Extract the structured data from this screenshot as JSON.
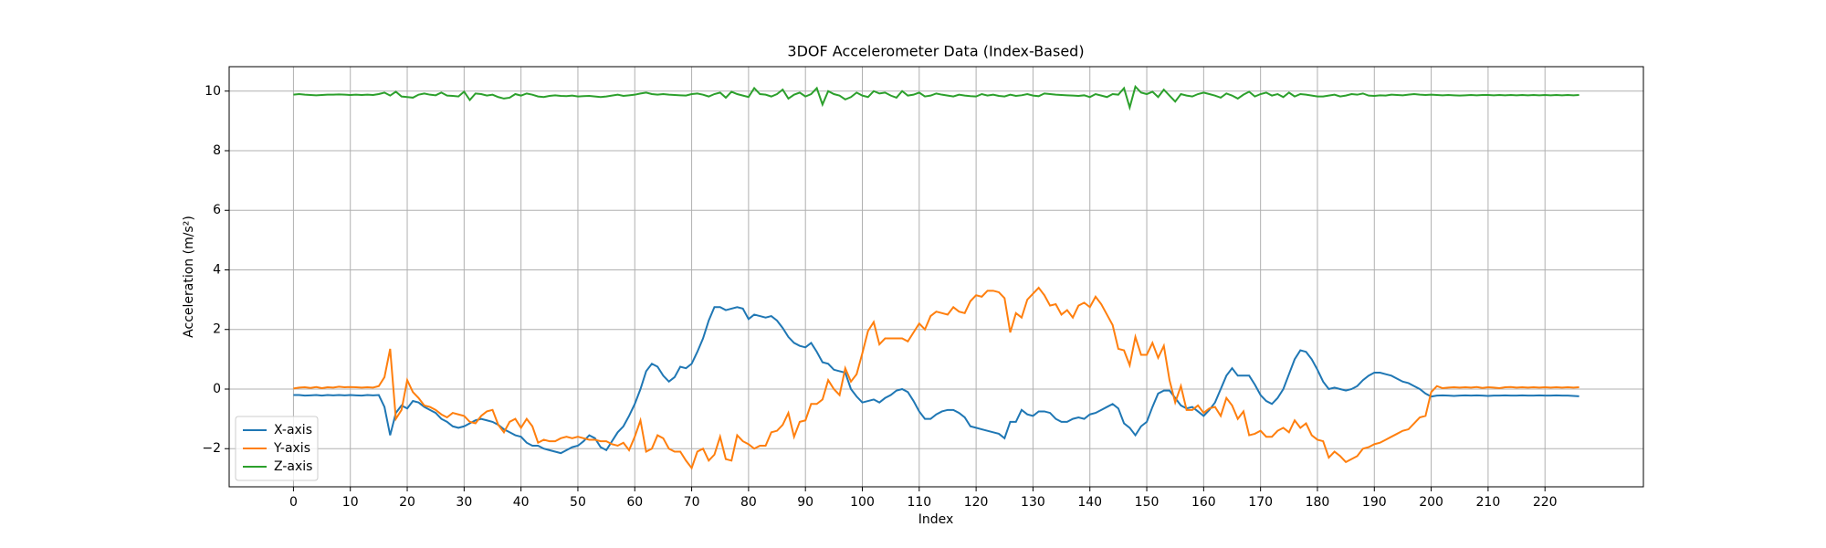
{
  "chart_data": {
    "type": "line",
    "title": "3DOF Accelerometer Data (Index-Based)",
    "xlabel": "Index",
    "ylabel": "Acceleration (m/s²)",
    "x": [
      0,
      1,
      2,
      3,
      4,
      5,
      6,
      7,
      8,
      9,
      10,
      11,
      12,
      13,
      14,
      15,
      16,
      17,
      18,
      19,
      20,
      21,
      22,
      23,
      24,
      25,
      26,
      27,
      28,
      29,
      30,
      31,
      32,
      33,
      34,
      35,
      36,
      37,
      38,
      39,
      40,
      41,
      42,
      43,
      44,
      45,
      46,
      47,
      48,
      49,
      50,
      51,
      52,
      53,
      54,
      55,
      56,
      57,
      58,
      59,
      60,
      61,
      62,
      63,
      64,
      65,
      66,
      67,
      68,
      69,
      70,
      71,
      72,
      73,
      74,
      75,
      76,
      77,
      78,
      79,
      80,
      81,
      82,
      83,
      84,
      85,
      86,
      87,
      88,
      89,
      90,
      91,
      92,
      93,
      94,
      95,
      96,
      97,
      98,
      99,
      100,
      101,
      102,
      103,
      104,
      105,
      106,
      107,
      108,
      109,
      110,
      111,
      112,
      113,
      114,
      115,
      116,
      117,
      118,
      119,
      120,
      121,
      122,
      123,
      124,
      125,
      126,
      127,
      128,
      129,
      130,
      131,
      132,
      133,
      134,
      135,
      136,
      137,
      138,
      139,
      140,
      141,
      142,
      143,
      144,
      145,
      146,
      147,
      148,
      149,
      150,
      151,
      152,
      153,
      154,
      155,
      156,
      157,
      158,
      159,
      160,
      161,
      162,
      163,
      164,
      165,
      166,
      167,
      168,
      169,
      170,
      171,
      172,
      173,
      174,
      175,
      176,
      177,
      178,
      179,
      180,
      181,
      182,
      183,
      184,
      185,
      186,
      187,
      188,
      189,
      190,
      191,
      192,
      193,
      194,
      195,
      196,
      197,
      198,
      199,
      200,
      201,
      202,
      203,
      204,
      205,
      206,
      207,
      208,
      209,
      210,
      211,
      212,
      213,
      214,
      215,
      216,
      217,
      218,
      219,
      220,
      221,
      222,
      223,
      224,
      225,
      226
    ],
    "series": [
      {
        "name": "X-axis",
        "color": "#1f77b4",
        "values": [
          -0.2,
          -0.2,
          -0.22,
          -0.21,
          -0.2,
          -0.22,
          -0.2,
          -0.21,
          -0.2,
          -0.21,
          -0.2,
          -0.21,
          -0.22,
          -0.2,
          -0.21,
          -0.2,
          -0.6,
          -1.55,
          -0.8,
          -0.55,
          -0.65,
          -0.4,
          -0.45,
          -0.6,
          -0.7,
          -0.8,
          -1.0,
          -1.1,
          -1.25,
          -1.3,
          -1.25,
          -1.15,
          -1.05,
          -1.0,
          -1.05,
          -1.1,
          -1.2,
          -1.35,
          -1.45,
          -1.55,
          -1.6,
          -1.8,
          -1.9,
          -1.9,
          -2.0,
          -2.05,
          -2.1,
          -2.15,
          -2.05,
          -1.95,
          -1.9,
          -1.75,
          -1.55,
          -1.65,
          -1.95,
          -2.05,
          -1.75,
          -1.45,
          -1.25,
          -0.9,
          -0.5,
          0.0,
          0.6,
          0.85,
          0.75,
          0.45,
          0.25,
          0.4,
          0.75,
          0.7,
          0.85,
          1.25,
          1.7,
          2.3,
          2.75,
          2.75,
          2.65,
          2.7,
          2.75,
          2.7,
          2.35,
          2.5,
          2.45,
          2.4,
          2.45,
          2.3,
          2.05,
          1.75,
          1.55,
          1.45,
          1.4,
          1.55,
          1.25,
          0.9,
          0.85,
          0.65,
          0.6,
          0.55,
          0.0,
          -0.25,
          -0.45,
          -0.4,
          -0.35,
          -0.45,
          -0.3,
          -0.2,
          -0.05,
          0.0,
          -0.1,
          -0.4,
          -0.75,
          -1.0,
          -1.0,
          -0.85,
          -0.75,
          -0.7,
          -0.7,
          -0.8,
          -0.95,
          -1.25,
          -1.3,
          -1.35,
          -1.4,
          -1.45,
          -1.5,
          -1.65,
          -1.1,
          -1.1,
          -0.7,
          -0.85,
          -0.9,
          -0.75,
          -0.75,
          -0.8,
          -1.0,
          -1.1,
          -1.1,
          -1.0,
          -0.95,
          -1.0,
          -0.85,
          -0.8,
          -0.7,
          -0.6,
          -0.5,
          -0.65,
          -1.15,
          -1.3,
          -1.55,
          -1.25,
          -1.1,
          -0.6,
          -0.15,
          -0.05,
          -0.05,
          -0.3,
          -0.55,
          -0.65,
          -0.6,
          -0.75,
          -0.9,
          -0.7,
          -0.45,
          0.0,
          0.45,
          0.7,
          0.45,
          0.45,
          0.45,
          0.15,
          -0.2,
          -0.4,
          -0.5,
          -0.3,
          0.0,
          0.5,
          1.0,
          1.3,
          1.25,
          1.0,
          0.65,
          0.25,
          0.0,
          0.05,
          0.0,
          -0.05,
          0.0,
          0.1,
          0.3,
          0.45,
          0.55,
          0.55,
          0.5,
          0.45,
          0.35,
          0.25,
          0.2,
          0.1,
          0.0,
          -0.15,
          -0.25,
          -0.22,
          -0.21,
          -0.22,
          -0.23,
          -0.22,
          -0.21,
          -0.22,
          -0.21,
          -0.22,
          -0.23,
          -0.22,
          -0.22,
          -0.21,
          -0.22,
          -0.22,
          -0.21,
          -0.22,
          -0.22,
          -0.21,
          -0.22,
          -0.22,
          -0.21,
          -0.22,
          -0.22,
          -0.23,
          -0.24
        ]
      },
      {
        "name": "Y-axis",
        "color": "#ff7f0e",
        "values": [
          0.02,
          0.05,
          0.06,
          0.04,
          0.07,
          0.03,
          0.06,
          0.05,
          0.08,
          0.06,
          0.07,
          0.06,
          0.05,
          0.06,
          0.05,
          0.1,
          0.4,
          1.35,
          -1.0,
          -0.7,
          0.3,
          -0.1,
          -0.3,
          -0.55,
          -0.6,
          -0.7,
          -0.85,
          -0.95,
          -0.8,
          -0.85,
          -0.9,
          -1.1,
          -1.15,
          -0.9,
          -0.75,
          -0.7,
          -1.2,
          -1.45,
          -1.1,
          -1.0,
          -1.3,
          -1.0,
          -1.25,
          -1.8,
          -1.7,
          -1.75,
          -1.75,
          -1.65,
          -1.6,
          -1.65,
          -1.6,
          -1.65,
          -1.7,
          -1.7,
          -1.75,
          -1.75,
          -1.85,
          -1.9,
          -1.8,
          -2.05,
          -1.6,
          -1.05,
          -2.1,
          -2.0,
          -1.55,
          -1.65,
          -2.0,
          -2.1,
          -2.1,
          -2.4,
          -2.65,
          -2.1,
          -2.0,
          -2.4,
          -2.2,
          -1.6,
          -2.35,
          -2.4,
          -1.55,
          -1.75,
          -1.85,
          -2.0,
          -1.9,
          -1.9,
          -1.45,
          -1.4,
          -1.2,
          -0.8,
          -1.6,
          -1.1,
          -1.05,
          -0.5,
          -0.5,
          -0.35,
          0.3,
          0.0,
          -0.2,
          0.7,
          0.25,
          0.5,
          1.2,
          1.95,
          2.25,
          1.5,
          1.7,
          1.7,
          1.7,
          1.7,
          1.6,
          1.9,
          2.2,
          2.0,
          2.45,
          2.6,
          2.55,
          2.5,
          2.75,
          2.6,
          2.55,
          2.95,
          3.15,
          3.1,
          3.3,
          3.3,
          3.25,
          3.05,
          1.9,
          2.55,
          2.4,
          3.0,
          3.2,
          3.4,
          3.15,
          2.8,
          2.85,
          2.5,
          2.65,
          2.4,
          2.8,
          2.9,
          2.75,
          3.1,
          2.85,
          2.5,
          2.15,
          1.35,
          1.3,
          0.8,
          1.75,
          1.15,
          1.15,
          1.55,
          1.05,
          1.45,
          0.3,
          -0.45,
          0.1,
          -0.7,
          -0.7,
          -0.55,
          -0.8,
          -0.65,
          -0.6,
          -0.9,
          -0.3,
          -0.55,
          -1.0,
          -0.75,
          -1.55,
          -1.5,
          -1.4,
          -1.6,
          -1.6,
          -1.4,
          -1.3,
          -1.45,
          -1.05,
          -1.3,
          -1.15,
          -1.55,
          -1.7,
          -1.75,
          -2.3,
          -2.1,
          -2.25,
          -2.45,
          -2.35,
          -2.25,
          -2.0,
          -1.95,
          -1.85,
          -1.8,
          -1.7,
          -1.6,
          -1.5,
          -1.4,
          -1.35,
          -1.15,
          -0.95,
          -0.9,
          -0.1,
          0.1,
          0.03,
          0.05,
          0.06,
          0.05,
          0.06,
          0.05,
          0.07,
          0.04,
          0.06,
          0.05,
          0.03,
          0.06,
          0.07,
          0.05,
          0.06,
          0.05,
          0.06,
          0.05,
          0.06,
          0.05,
          0.06,
          0.05,
          0.06,
          0.05,
          0.06
        ]
      },
      {
        "name": "Z-axis",
        "color": "#2ca02c",
        "values": [
          9.88,
          9.9,
          9.88,
          9.87,
          9.86,
          9.87,
          9.88,
          9.88,
          9.89,
          9.88,
          9.87,
          9.88,
          9.87,
          9.88,
          9.87,
          9.9,
          9.95,
          9.85,
          9.98,
          9.82,
          9.8,
          9.78,
          9.88,
          9.92,
          9.88,
          9.86,
          9.95,
          9.85,
          9.84,
          9.82,
          9.98,
          9.7,
          9.92,
          9.9,
          9.85,
          9.88,
          9.8,
          9.75,
          9.78,
          9.9,
          9.85,
          9.92,
          9.88,
          9.82,
          9.8,
          9.84,
          9.86,
          9.84,
          9.83,
          9.85,
          9.82,
          9.83,
          9.84,
          9.82,
          9.8,
          9.82,
          9.85,
          9.88,
          9.84,
          9.86,
          9.88,
          9.92,
          9.95,
          9.9,
          9.88,
          9.9,
          9.88,
          9.87,
          9.86,
          9.85,
          9.9,
          9.92,
          9.88,
          9.82,
          9.9,
          9.95,
          9.78,
          9.98,
          9.9,
          9.85,
          9.8,
          10.1,
          9.9,
          9.88,
          9.82,
          9.9,
          10.05,
          9.75,
          9.88,
          9.95,
          9.82,
          9.9,
          10.1,
          9.55,
          10.0,
          9.9,
          9.85,
          9.72,
          9.8,
          9.95,
          9.85,
          9.8,
          10.0,
          9.92,
          9.95,
          9.85,
          9.78,
          10.0,
          9.85,
          9.88,
          9.95,
          9.82,
          9.85,
          9.92,
          9.88,
          9.85,
          9.82,
          9.88,
          9.85,
          9.83,
          9.82,
          9.9,
          9.85,
          9.88,
          9.84,
          9.82,
          9.88,
          9.84,
          9.86,
          9.9,
          9.85,
          9.83,
          9.92,
          9.9,
          9.88,
          9.87,
          9.86,
          9.85,
          9.84,
          9.86,
          9.8,
          9.9,
          9.85,
          9.8,
          9.9,
          9.88,
          10.1,
          9.45,
          10.15,
          9.95,
          9.9,
          9.98,
          9.8,
          10.05,
          9.85,
          9.65,
          9.9,
          9.85,
          9.82,
          9.9,
          9.95,
          9.9,
          9.85,
          9.78,
          9.92,
          9.85,
          9.75,
          9.88,
          9.98,
          9.82,
          9.9,
          9.95,
          9.85,
          9.9,
          9.8,
          9.95,
          9.82,
          9.9,
          9.88,
          9.85,
          9.82,
          9.82,
          9.85,
          9.88,
          9.82,
          9.85,
          9.9,
          9.88,
          9.92,
          9.85,
          9.84,
          9.86,
          9.85,
          9.88,
          9.87,
          9.86,
          9.88,
          9.9,
          9.88,
          9.87,
          9.88,
          9.87,
          9.86,
          9.87,
          9.86,
          9.85,
          9.86,
          9.87,
          9.86,
          9.87,
          9.87,
          9.86,
          9.87,
          9.86,
          9.87,
          9.86,
          9.87,
          9.86,
          9.87,
          9.86,
          9.87,
          9.86,
          9.87,
          9.86,
          9.87,
          9.86,
          9.87
        ]
      }
    ],
    "xlim": [
      -11.3,
      237.3
    ],
    "ylim": [
      -3.28,
      10.82
    ],
    "xticks": [
      0,
      10,
      20,
      30,
      40,
      50,
      60,
      70,
      80,
      90,
      100,
      110,
      120,
      130,
      140,
      150,
      160,
      170,
      180,
      190,
      200,
      210,
      220
    ],
    "yticks": [
      {
        "value": -2,
        "label": "−2"
      },
      0,
      2,
      4,
      6,
      8,
      10
    ],
    "grid": true,
    "legend": "lower left"
  }
}
